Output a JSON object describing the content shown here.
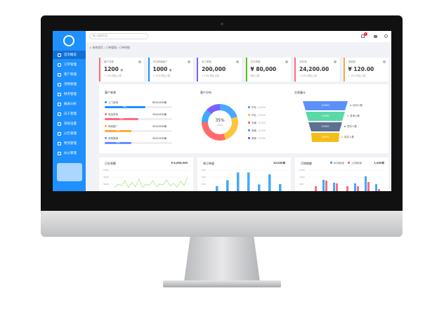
{
  "header": {
    "search_placeholder": "输入搜索内容",
    "notification_count": "5"
  },
  "breadcrumb": [
    "系统首页",
    "订单管理",
    "订单明细"
  ],
  "sidebar": {
    "items": [
      {
        "label": "首页概览"
      },
      {
        "label": "订单管理"
      },
      {
        "label": "客户管理"
      },
      {
        "label": "货物管理"
      },
      {
        "label": "财务管理"
      },
      {
        "label": "报表分析"
      },
      {
        "label": "员工管理"
      },
      {
        "label": "系统设置"
      },
      {
        "label": "公告管理"
      },
      {
        "label": "物流管理"
      },
      {
        "label": "办公管理"
      }
    ]
  },
  "cards": [
    {
      "title": "客户总数",
      "value": "1200",
      "unit": "家",
      "sub": "↑ 10%  同比上周",
      "color": "#ff6b6b"
    },
    {
      "title": "本月新增客户",
      "value": "1000",
      "unit": "家",
      "sub": "↑ 10%  同比上周",
      "color": "#1e90ff"
    },
    {
      "title": "总订单数",
      "value": "200,000",
      "unit": "",
      "sub": "↑ 10%  同比上周",
      "color": "#7b61ff"
    },
    {
      "title": "总交易额",
      "value": "¥ 80,000",
      "unit": "",
      "sub": "同比上周",
      "color": "#52c41a"
    },
    {
      "title": "总利润",
      "value": "24,200.00",
      "unit": "",
      "sub": "↓ 20%  同比上周",
      "color": "#ff6b81"
    },
    {
      "title": "退款额",
      "value": "¥ 120.00",
      "unit": "",
      "sub": "↑ 10%  同比上周",
      "color": "#ffa940"
    }
  ],
  "source": {
    "title": "客户来源",
    "items": [
      {
        "label": "上门咨询",
        "count": "600/1000家",
        "pct": 60,
        "color": "#1e90ff"
      },
      {
        "label": "电话咨询",
        "count": "500/1000家",
        "pct": 50,
        "color": "#ff6b81"
      },
      {
        "label": "网络推广",
        "count": "400/1000家",
        "pct": 40,
        "color": "#ffa940"
      },
      {
        "label": "其他渠道",
        "count": "400/1000家",
        "pct": 40,
        "color": "#6b8cff"
      }
    ]
  },
  "distribution": {
    "title": "客户分布",
    "center": "35%",
    "center_sub": "2000",
    "legend": [
      {
        "label": "华东",
        "value": "10000",
        "color": "#4aa8ff",
        "pct": 20
      },
      {
        "label": "华北",
        "value": "10000",
        "color": "#ffc53d",
        "pct": 25
      },
      {
        "label": "华南",
        "value": "10000",
        "color": "#ff6b6b",
        "pct": 30
      },
      {
        "label": "西南",
        "value": "10000",
        "color": "#40a9ff",
        "pct": 12
      },
      {
        "label": "其他",
        "value": "10000",
        "color": "#7b61ff",
        "pct": 13
      }
    ]
  },
  "funnel": {
    "title": "交易漏斗",
    "stages": [
      {
        "value": "22000",
        "label": "访问人数",
        "color": "#5b8ff9"
      },
      {
        "value": "22000",
        "label": "咨询人数",
        "color": "#5ad8a6"
      },
      {
        "value": "22000",
        "label": "意向人数",
        "color": "#5d7092"
      },
      {
        "value": "16000",
        "label": "成交人数",
        "color": "#f6bd16"
      }
    ]
  },
  "daily": {
    "title": "日交易额",
    "total": "¥ 8,000,000",
    "yticks": [
      "5000",
      "4000",
      "3000"
    ],
    "values": [
      3,
      4,
      3.5,
      5,
      3,
      4.5,
      3.2,
      5.5,
      3,
      4,
      3.6,
      5,
      3.3,
      4,
      3.8,
      5.2,
      3.5,
      4.2,
      3.1,
      4.8,
      3.6,
      6
    ]
  },
  "weekly": {
    "title": "周订单量",
    "total": "10,000单",
    "yticks": [
      "600",
      "400",
      "200"
    ],
    "values": [
      200,
      380,
      620,
      620,
      250,
      560,
      260
    ]
  },
  "monthly": {
    "title": "月销售额",
    "total": "1,000家",
    "legend": [
      "本月销售额",
      "上月销售额"
    ],
    "yticks": [
      "1500",
      "1000",
      "500"
    ],
    "series": [
      [
        0,
        900,
        700,
        50,
        650,
        1150,
        600
      ],
      [
        450,
        850,
        650,
        450,
        450,
        750,
        250
      ]
    ]
  }
}
